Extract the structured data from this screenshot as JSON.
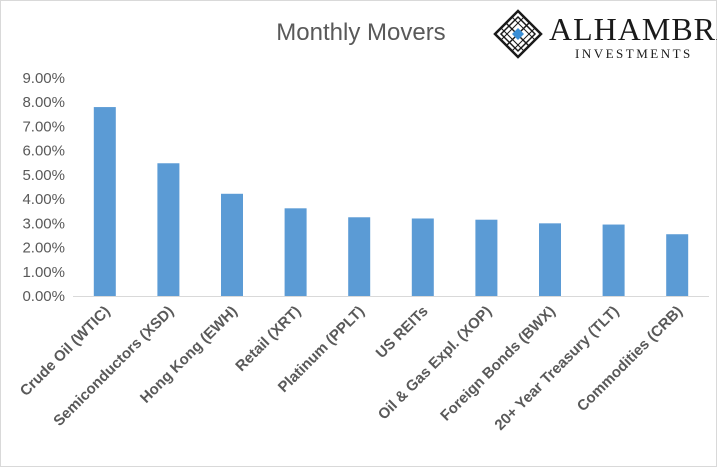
{
  "colors": {
    "bar": "#5b9bd5",
    "axis_text": "#595959",
    "title": "#595959",
    "logo_accent": "#3a8fd6"
  },
  "logo": {
    "name": "Alhambra",
    "subtitle": "Investments",
    "mark_icon": "diamond-lattice-icon"
  },
  "chart_data": {
    "type": "bar",
    "title": "Monthly Movers",
    "xlabel": "",
    "ylabel": "",
    "ylim": [
      0,
      9
    ],
    "yticks": [
      "0.00%",
      "1.00%",
      "2.00%",
      "3.00%",
      "4.00%",
      "5.00%",
      "6.00%",
      "7.00%",
      "8.00%",
      "9.00%"
    ],
    "grid": false,
    "legend": "none",
    "categories": [
      "Crude Oil (WTIC)",
      "Semiconductors (XSD)",
      "Hong Kong (EWH)",
      "Retail (XRT)",
      "Platinum (PPLT)",
      "US REITs",
      "Oil & Gas Expl. (XOP)",
      "Foreign Bonds (BWX)",
      "20+ Year Treasury (TLT)",
      "Commodities (CRB)"
    ],
    "values": [
      7.8,
      5.48,
      4.22,
      3.62,
      3.25,
      3.2,
      3.15,
      3.0,
      2.95,
      2.55
    ]
  }
}
